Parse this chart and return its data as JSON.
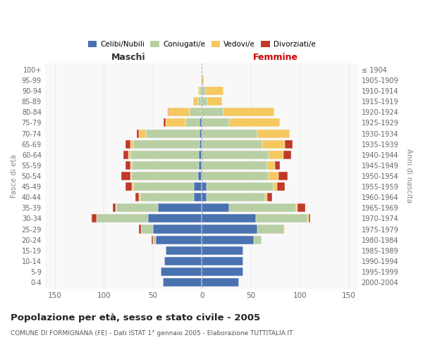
{
  "age_groups": [
    "100+",
    "95-99",
    "90-94",
    "85-89",
    "80-84",
    "75-79",
    "70-74",
    "65-69",
    "60-64",
    "55-59",
    "50-54",
    "45-49",
    "40-44",
    "35-39",
    "30-34",
    "25-29",
    "20-24",
    "15-19",
    "10-14",
    "5-9",
    "0-4"
  ],
  "birth_years": [
    "≤ 1904",
    "1905-1909",
    "1910-1914",
    "1915-1919",
    "1920-1924",
    "1925-1929",
    "1930-1934",
    "1935-1939",
    "1940-1944",
    "1945-1949",
    "1950-1954",
    "1955-1959",
    "1960-1964",
    "1965-1969",
    "1970-1974",
    "1975-1979",
    "1980-1984",
    "1985-1989",
    "1990-1994",
    "1995-1999",
    "2000-2004"
  ],
  "male_celibi": [
    0,
    0,
    0,
    0,
    0,
    2,
    2,
    2,
    3,
    3,
    4,
    8,
    8,
    45,
    55,
    50,
    47,
    37,
    38,
    42,
    40
  ],
  "male_coniugati": [
    0,
    0,
    2,
    4,
    12,
    15,
    55,
    68,
    70,
    68,
    68,
    62,
    55,
    42,
    52,
    12,
    3,
    0,
    0,
    0,
    0
  ],
  "male_vedovi": [
    0,
    0,
    2,
    5,
    22,
    20,
    7,
    3,
    2,
    2,
    1,
    1,
    1,
    1,
    0,
    0,
    0,
    0,
    0,
    0,
    0
  ],
  "male_divorziati": [
    0,
    0,
    0,
    0,
    1,
    2,
    2,
    5,
    5,
    5,
    9,
    7,
    4,
    3,
    5,
    2,
    1,
    0,
    0,
    0,
    0
  ],
  "female_nubili": [
    0,
    0,
    0,
    0,
    0,
    0,
    0,
    0,
    0,
    0,
    0,
    5,
    5,
    28,
    55,
    57,
    53,
    42,
    42,
    42,
    38
  ],
  "female_coniugate": [
    0,
    0,
    4,
    6,
    22,
    28,
    57,
    62,
    68,
    67,
    68,
    68,
    60,
    68,
    53,
    27,
    8,
    0,
    0,
    0,
    0
  ],
  "female_vedove": [
    0,
    2,
    18,
    15,
    52,
    52,
    33,
    23,
    15,
    8,
    10,
    4,
    2,
    2,
    1,
    1,
    0,
    0,
    0,
    0,
    0
  ],
  "female_divorziate": [
    0,
    0,
    0,
    0,
    0,
    0,
    0,
    8,
    8,
    5,
    10,
    8,
    5,
    8,
    2,
    0,
    0,
    0,
    0,
    0,
    0
  ],
  "colors": {
    "celibi_nubili": "#4a72b0",
    "coniugati": "#b8cfa4",
    "vedovi": "#f5c860",
    "divorziati": "#c0392b"
  },
  "xlim": 160,
  "title": "Popolazione per età, sesso e stato civile - 2005",
  "subtitle": "COMUNE DI FORMIGNANA (FE) - Dati ISTAT 1° gennaio 2005 - Elaborazione TUTTITALIA.IT",
  "ylabel_left": "Fasce di età",
  "ylabel_right": "Anni di nascita",
  "xlabel_maschi": "Maschi",
  "xlabel_femmine": "Femmine"
}
